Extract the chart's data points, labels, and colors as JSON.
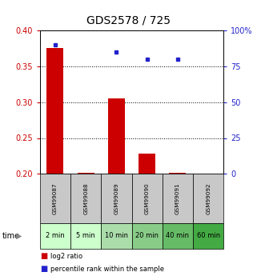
{
  "title": "GDS2578 / 725",
  "categories": [
    "GSM99087",
    "GSM99088",
    "GSM99089",
    "GSM99090",
    "GSM99091",
    "GSM99092"
  ],
  "time_labels": [
    "2 min",
    "5 min",
    "10 min",
    "20 min",
    "40 min",
    "60 min"
  ],
  "log2_ratio": [
    0.375,
    0.201,
    0.305,
    0.228,
    0.202,
    0.2
  ],
  "percentile_rank": [
    90,
    null,
    85,
    80,
    80,
    null
  ],
  "ylim_left": [
    0.2,
    0.4
  ],
  "ylim_right": [
    0,
    100
  ],
  "yticks_left": [
    0.2,
    0.25,
    0.3,
    0.35,
    0.4
  ],
  "yticks_right": [
    0,
    25,
    50,
    75,
    100
  ],
  "bar_color": "#cc0000",
  "dot_color": "#2222cc",
  "bar_bottom": 0.2,
  "grid_color": "#000000",
  "bg_plot": "#ffffff",
  "bg_gsm": "#c8c8c8",
  "bg_time_colors": [
    "#ccffcc",
    "#ccffcc",
    "#aaddaa",
    "#88cc88",
    "#66bb66",
    "#44aa44"
  ],
  "legend_bar_label": "log2 ratio",
  "legend_dot_label": "percentile rank within the sample",
  "left_label_color": "#cc0000",
  "right_label_color": "#2222cc",
  "title_fontsize": 10,
  "tick_fontsize": 7,
  "gsm_fontsize": 5.2,
  "time_fontsize": 6
}
